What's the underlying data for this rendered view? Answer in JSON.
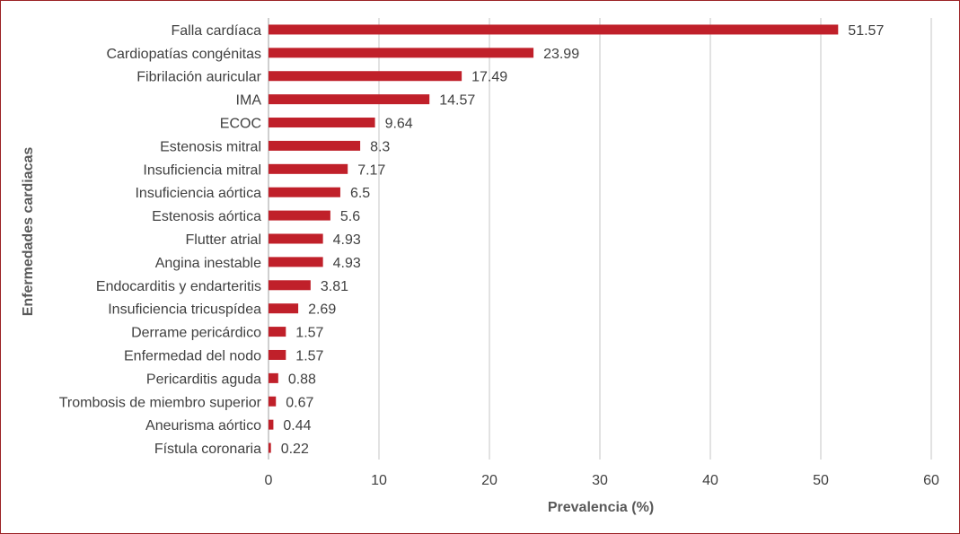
{
  "chart_data": {
    "type": "bar",
    "orientation": "horizontal",
    "xlabel": "Prevalencia (%)",
    "ylabel": "Enfermedades cardiacas",
    "xlim": [
      0,
      60
    ],
    "xticks": [
      0,
      10,
      20,
      30,
      40,
      50,
      60
    ],
    "grid": true,
    "bar_color": "#c0202a",
    "categories": [
      "Falla cardíaca",
      "Cardiopatías congénitas",
      "Fibrilación auricular",
      "IMA",
      "ECOC",
      "Estenosis mitral",
      "Insuficiencia mitral",
      "Insuficiencia aórtica",
      "Estenosis aórtica",
      "Flutter atrial",
      "Angina inestable",
      "Endocarditis y endarteritis",
      "Insuficiencia tricuspídea",
      "Derrame pericárdico",
      "Enfermedad del nodo",
      "Pericarditis aguda",
      "Trombosis de miembro superior",
      "Aneurisma aórtico",
      "Fístula coronaria"
    ],
    "values": [
      51.57,
      23.99,
      17.49,
      14.57,
      9.64,
      8.3,
      7.17,
      6.5,
      5.6,
      4.93,
      4.93,
      3.81,
      2.69,
      1.57,
      1.57,
      0.88,
      0.67,
      0.44,
      0.22
    ],
    "value_labels": [
      "51.57",
      "23.99",
      "17.49",
      "14.57",
      "9.64",
      "8.3",
      "7.17",
      "6.5",
      "5.6",
      "4.93",
      "4.93",
      "3.81",
      "2.69",
      "1.57",
      "1.57",
      "0.88",
      "0.67",
      "0.44",
      "0.22"
    ]
  }
}
